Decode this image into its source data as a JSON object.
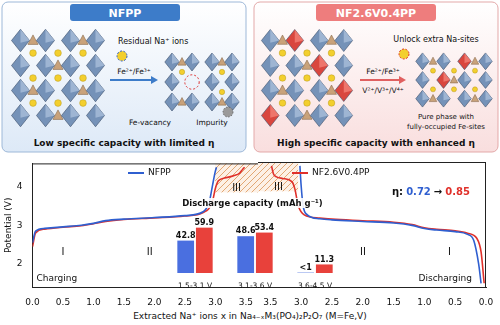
{
  "diagram": {
    "panels": [
      {
        "title": "NFPP",
        "texts": {
          "residual": "Residual Na⁺ ions",
          "couple": "Fe²⁺/Fe³⁺",
          "vacancy": "Fe-vacancy",
          "impurity": "Impurity"
        },
        "caption": "Low specific capacity with limited η"
      },
      {
        "title": "NF2.6V0.4PP",
        "texts": {
          "unlock": "Unlock extra Na-sites",
          "couple": "Fe²⁺/Fe³⁺",
          "couple2": "V²⁺/V³⁺/V⁴⁺",
          "phase": [
            "Pure phase with",
            "fully-occupied Fe-sites"
          ]
        },
        "caption": "High specific capacity with enhanced η"
      }
    ]
  },
  "chart_data": [
    {
      "type": "line",
      "title": "Charging",
      "x_label": "Extracted Na⁺ ions x in Na₄₋ₓM₃(PO₄)₂P₂O₇ (M=Fe,V)",
      "y_label": "Potential (V)",
      "xlim": [
        0,
        3.7
      ],
      "xticks": [
        {
          "value": 0,
          "label": "0.0"
        },
        {
          "value": 0.5,
          "label": "0.5"
        },
        {
          "value": 1,
          "label": "1.0"
        },
        {
          "value": 1.5,
          "label": "1.5"
        },
        {
          "value": 2,
          "label": "2.0"
        },
        {
          "value": 2.5,
          "label": "2.5"
        },
        {
          "value": 3,
          "label": "3.0"
        },
        {
          "value": 3.5,
          "label": "3.5"
        }
      ],
      "ylim": [
        1.4,
        4.6
      ],
      "yticks": [
        2,
        3,
        4
      ],
      "grid": false,
      "legend": "top",
      "annotations": [
        "I",
        "II",
        "III"
      ],
      "series": [
        {
          "name": "NFPP",
          "color": "#2f5fd0",
          "x": [
            0,
            0.05,
            0.2,
            0.5,
            0.8,
            1.0,
            1.2,
            1.5,
            2.0,
            2.5,
            2.8,
            2.9,
            2.95,
            3.0,
            3.02
          ],
          "values": [
            2.55,
            2.85,
            2.92,
            2.96,
            3.0,
            3.05,
            3.12,
            3.16,
            3.2,
            3.25,
            3.35,
            3.6,
            4.0,
            4.4,
            4.5
          ]
        },
        {
          "name": "NF2.6V0.4PP",
          "color": "#e0302a",
          "x": [
            0,
            0.05,
            0.2,
            0.5,
            0.8,
            1.0,
            1.2,
            1.5,
            2.0,
            2.5,
            2.8,
            2.95,
            3.0,
            3.05,
            3.15,
            3.3,
            3.4,
            3.45,
            3.48
          ],
          "values": [
            2.45,
            2.8,
            2.9,
            2.95,
            2.99,
            3.04,
            3.1,
            3.15,
            3.19,
            3.24,
            3.33,
            3.6,
            3.95,
            4.15,
            4.22,
            4.28,
            4.35,
            4.45,
            4.5
          ]
        }
      ]
    },
    {
      "type": "line",
      "title": "Discharging",
      "xlim": [
        3.7,
        0
      ],
      "xticks": [
        {
          "value": 0,
          "label": "0.0"
        },
        {
          "value": 0.5,
          "label": "0.5"
        },
        {
          "value": 1,
          "label": "1.0"
        },
        {
          "value": 1.5,
          "label": "1.5"
        },
        {
          "value": 2,
          "label": "2.0"
        },
        {
          "value": 2.5,
          "label": "2.5"
        },
        {
          "value": 3,
          "label": "3.0"
        },
        {
          "value": 3.5,
          "label": "3.5"
        }
      ],
      "ylim": [
        1.4,
        4.6
      ],
      "grid": false,
      "tick_labels": "x",
      "annotations": [
        "III",
        "II",
        "I"
      ],
      "note": [
        "η:",
        "0.72",
        "→",
        "0.85"
      ],
      "series": [
        {
          "name": "NFPP",
          "color": "#2f5fd0",
          "x": [
            3.02,
            3.0,
            2.97,
            2.9,
            2.7,
            2.5,
            2.0,
            1.5,
            1.2,
            1.0,
            0.8,
            0.5,
            0.3,
            0.2,
            0.12,
            0.08
          ],
          "values": [
            4.5,
            4.0,
            3.5,
            3.25,
            3.15,
            3.12,
            3.08,
            3.04,
            2.98,
            2.9,
            2.86,
            2.82,
            2.75,
            2.6,
            2.0,
            1.5
          ]
        },
        {
          "name": "NF2.6V0.4PP",
          "color": "#e0302a",
          "x": [
            3.48,
            3.45,
            3.4,
            3.3,
            3.15,
            3.1,
            3.05,
            2.95,
            2.7,
            2.5,
            2.0,
            1.5,
            1.2,
            1.0,
            0.8,
            0.5,
            0.3,
            0.15,
            0.08,
            0.03
          ],
          "values": [
            4.5,
            4.3,
            4.22,
            4.18,
            4.1,
            3.9,
            3.5,
            3.25,
            3.17,
            3.14,
            3.1,
            3.06,
            3.0,
            2.92,
            2.88,
            2.84,
            2.78,
            2.65,
            2.3,
            1.5
          ]
        }
      ]
    },
    {
      "type": "bar",
      "title": "Discharge capacity (mAh g⁻¹)",
      "categories": [
        "1.5-3.1 V",
        "3.1-3.6 V",
        "3.6-4.5 V"
      ],
      "ylim": [
        0,
        70
      ],
      "grid": false,
      "tick_labels": "x",
      "data_labels": true,
      "series": [
        {
          "name": "NFPP",
          "color": "#4a6fe0",
          "values": [
            42.8,
            48.6,
            0.5
          ],
          "value_labels": [
            "42.8",
            "48.6",
            "<1"
          ]
        },
        {
          "name": "NF2.6V0.4PP",
          "color": "#e8413b",
          "values": [
            59.9,
            53.4,
            11.3
          ]
        }
      ]
    }
  ]
}
